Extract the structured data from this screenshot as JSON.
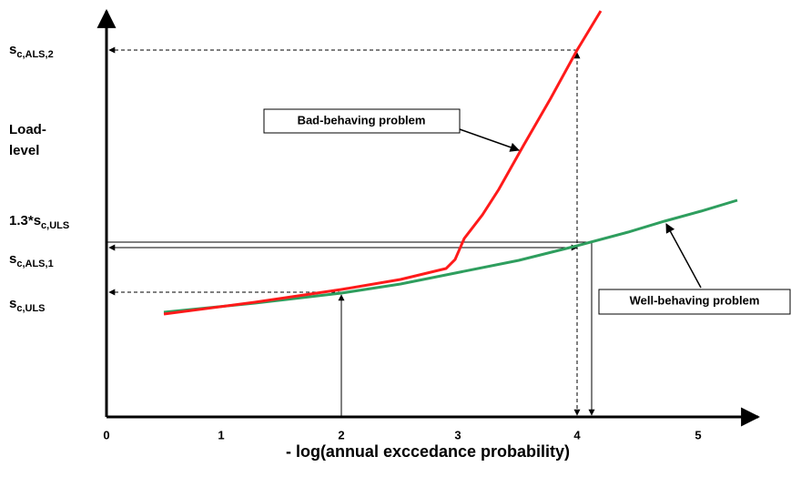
{
  "y_axis": {
    "label": [
      "Load-",
      "level"
    ],
    "levels": [
      {
        "main": "s",
        "sub": "c,ALS,2"
      },
      {
        "main": "1.3*s",
        "sub": "c,ULS"
      },
      {
        "main": "s",
        "sub": "c,ALS,1"
      },
      {
        "main": "s",
        "sub": "c,ULS"
      }
    ]
  },
  "x_axis": {
    "label": "- log(annual exccedance probability)",
    "ticks": [
      "0",
      "1",
      "2",
      "3",
      "4",
      "5"
    ]
  },
  "annotations": {
    "bad": "Bad-behaving problem",
    "well": "Well-behaving problem"
  }
}
